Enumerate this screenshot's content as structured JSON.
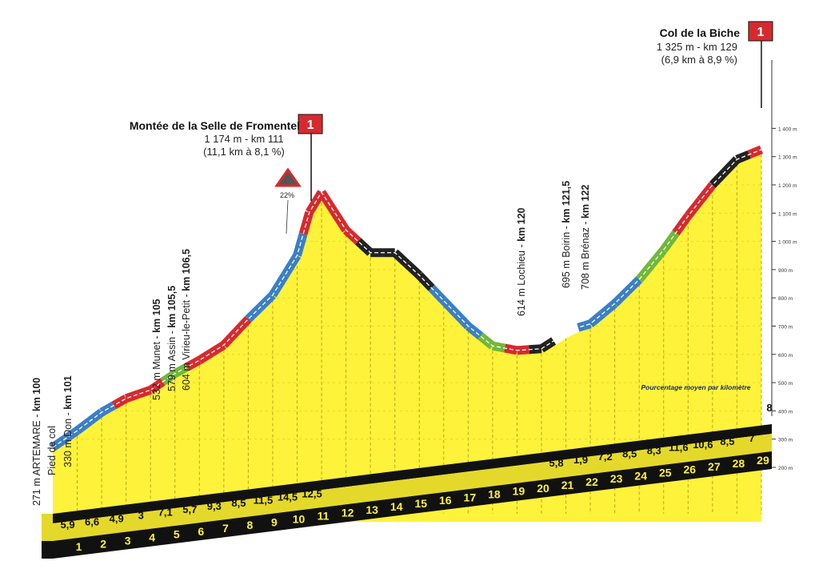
{
  "chart_data": {
    "type": "area",
    "title": "",
    "xlabel": "",
    "ylabel": "",
    "x_unit": "km",
    "y_unit": "m",
    "ylim": [
      200,
      1400
    ],
    "xlim": [
      0,
      29
    ],
    "y_ticks": [
      "200 m",
      "300 m",
      "400 m",
      "500 m",
      "600 m",
      "700 m",
      "800 m",
      "900 m",
      "1 000 m",
      "1 100 m",
      "1 200 m",
      "1 300 m",
      "1 400 m"
    ],
    "km_ticks": [
      "1",
      "2",
      "3",
      "4",
      "5",
      "6",
      "7",
      "8",
      "9",
      "10",
      "11",
      "12",
      "13",
      "14",
      "15",
      "16",
      "17",
      "18",
      "19",
      "20",
      "21",
      "22",
      "23",
      "24",
      "25",
      "26",
      "27",
      "28",
      "29"
    ],
    "profile": {
      "x": [
        0,
        1,
        2,
        3,
        4,
        5,
        6,
        7,
        8,
        9,
        10,
        10.5,
        11,
        12,
        13,
        14,
        15,
        16,
        17,
        18,
        19,
        20,
        21,
        21.5,
        22,
        23,
        24,
        25,
        26,
        27,
        28,
        29
      ],
      "y": [
        271,
        330,
        395,
        444,
        474,
        532,
        579,
        633,
        725,
        810,
        950,
        1103,
        1174,
        1040,
        960,
        960,
        880,
        790,
        700,
        630,
        614,
        620,
        675,
        695,
        708,
        780,
        865,
        970,
        1090,
        1200,
        1290,
        1325
      ]
    },
    "gradients": {
      "km": [
        "1",
        "2",
        "3",
        "4",
        "5",
        "6",
        "7",
        "8",
        "9",
        "10",
        "11",
        "21",
        "22",
        "23",
        "24",
        "25",
        "26",
        "27",
        "28",
        "29"
      ],
      "values": [
        "5,9",
        "6,6",
        "4,9",
        "3",
        "7,1",
        "5,7",
        "9,3",
        "8,5",
        "11,5",
        "14,5",
        "12,5",
        "5,8",
        "1,9",
        "7,2",
        "8,5",
        "8,3",
        "11,6",
        "10,6",
        "8,5",
        "7"
      ],
      "extra": "8",
      "caption": "Pourcentage moyen par kilomètre"
    },
    "segment_colors": {
      "0-5": "#3a7fc6",
      "5-9": "#d62a2f",
      "9-11": "#70b83a",
      "11-16": "#d62a2f",
      "16-21": "#3a7fc6",
      "21-27": "#d62a2f",
      "27-33": "#222222",
      "33-37": "#3a7fc6",
      "37-39": "#70b83a",
      "39-41": "#d62a2f",
      "41-43": "#222222",
      "43-46": "#ffffff",
      "46-52": "#3a7fc6",
      "52-55": "#70b83a",
      "55-58": "#d62a2f",
      "58-61": "#222222",
      "61-64": "#d62a2f"
    },
    "annotations": {
      "climb1": {
        "name": "Montée de la Selle de Fromentel",
        "info": "1 174 m - km 111",
        "detail": "(11,1 km à 8,1 %)",
        "category": "1",
        "steep_pct": "22%"
      },
      "climb2": {
        "name": "Col de la Biche",
        "info": "1 325 m - km 129",
        "detail": "(6,9 km à 8,9 %)",
        "category": "1"
      },
      "waypoints": [
        {
          "line1": "271 m ARTEMARE - ",
          "bold": "km 100",
          "line2": "Pied de col",
          "line3": "330 m Don - ",
          "bold3": "km 101"
        },
        {
          "line1": "532 m Munet - ",
          "bold": "km 105"
        },
        {
          "line1": "579 m Assin - ",
          "bold": "km 105,5"
        },
        {
          "line1": "604 m Virieu-le-Petit - ",
          "bold": "km 106,5"
        },
        {
          "line1": "614 m Lochieu - ",
          "bold": "km 120"
        },
        {
          "line1": "695 m Boirin - ",
          "bold": "km 121,5"
        },
        {
          "line1": "708 m Brénaz - ",
          "bold": "km 122"
        }
      ]
    }
  },
  "colors": {
    "fill": "#fff23a",
    "dark": "#111111",
    "red": "#d62a2f",
    "blue": "#3a7fc6",
    "green": "#70b83a",
    "dash": "#ffffff"
  }
}
